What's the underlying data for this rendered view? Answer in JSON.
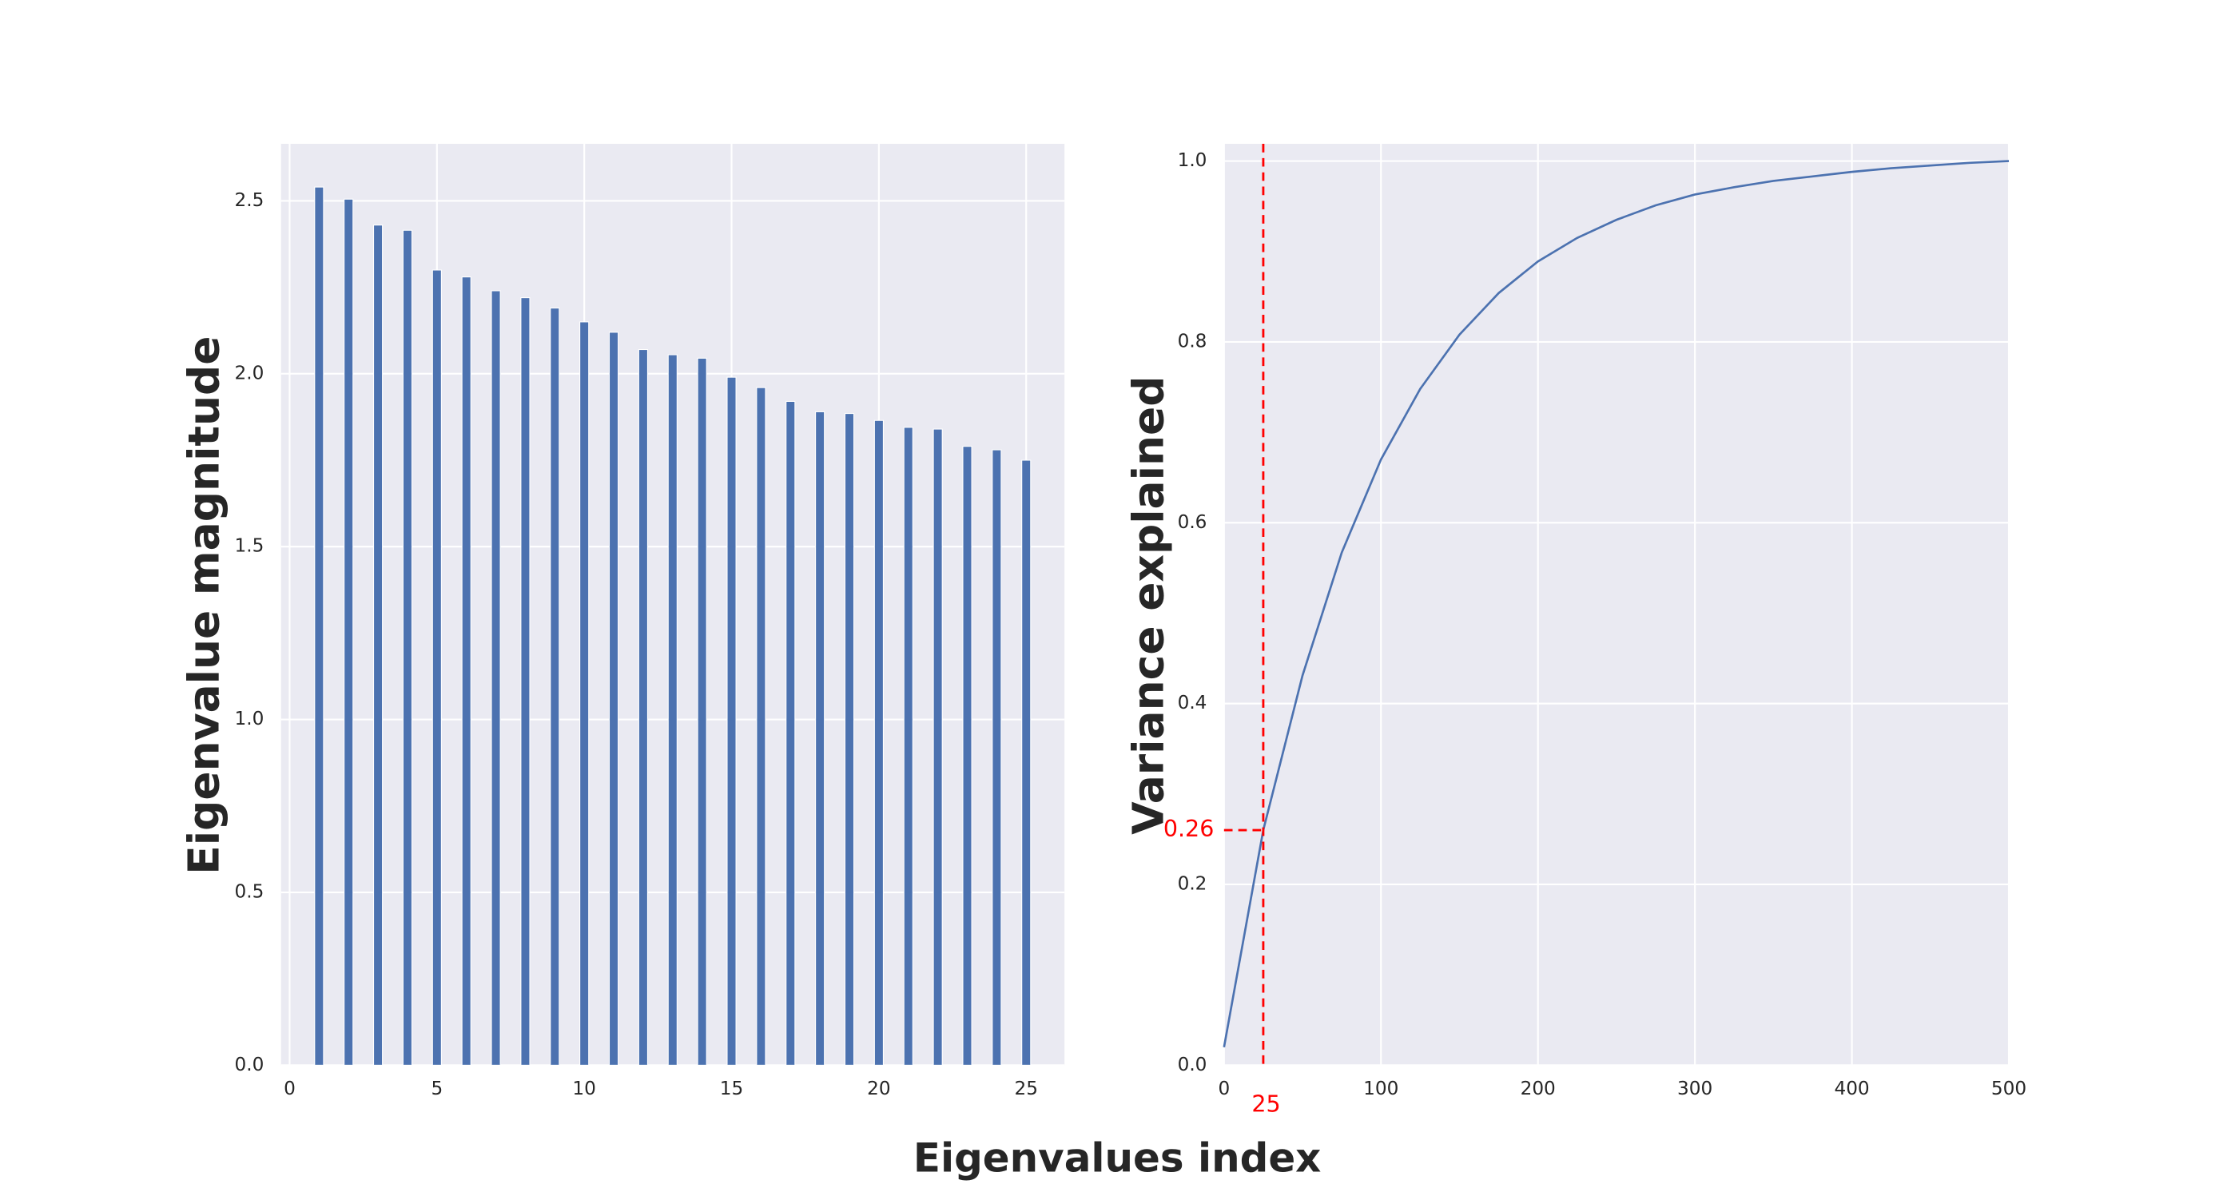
{
  "xlabel": "Eigenvalues index",
  "chart_data": [
    {
      "type": "bar",
      "ylabel": "Eigenvalue magnitude",
      "color": "#4c72b0",
      "x": [
        1,
        2,
        3,
        4,
        5,
        6,
        7,
        8,
        9,
        10,
        11,
        12,
        13,
        14,
        15,
        16,
        17,
        18,
        19,
        20,
        21,
        22,
        23,
        24,
        25
      ],
      "values": [
        2.54,
        2.505,
        2.43,
        2.415,
        2.3,
        2.28,
        2.24,
        2.22,
        2.19,
        2.15,
        2.12,
        2.07,
        2.055,
        2.045,
        1.99,
        1.96,
        1.92,
        1.89,
        1.885,
        1.865,
        1.845,
        1.84,
        1.79,
        1.78,
        1.75
      ],
      "xlim": [
        -0.29,
        26.3
      ],
      "xticks": [
        0,
        5,
        10,
        15,
        20,
        25
      ],
      "ylim": [
        0,
        2.665
      ],
      "yticks": [
        {
          "value": 0,
          "label": "0.0"
        },
        0.5,
        {
          "value": 1,
          "label": "1.0"
        },
        1.5,
        {
          "value": 2,
          "label": "2.0"
        },
        2.5
      ],
      "grid": true
    },
    {
      "type": "line",
      "ylabel": "Variance explained",
      "color": "#4c72b0",
      "x": [
        0,
        25,
        50,
        75,
        100,
        125,
        150,
        175,
        200,
        225,
        250,
        275,
        300,
        325,
        350,
        375,
        400,
        425,
        450,
        475,
        500
      ],
      "values": [
        0.02,
        0.26,
        0.431,
        0.567,
        0.67,
        0.748,
        0.808,
        0.854,
        0.889,
        0.915,
        0.935,
        0.951,
        0.963,
        0.971,
        0.978,
        0.983,
        0.988,
        0.992,
        0.995,
        0.998,
        1.0
      ],
      "xlim": [
        0,
        500
      ],
      "xticks": [
        0,
        100,
        200,
        300,
        400,
        500
      ],
      "ylim": [
        0,
        1.019
      ],
      "yticks": [
        {
          "value": 0,
          "label": "0.0"
        },
        0.2,
        0.4,
        0.6,
        0.8,
        {
          "value": 1,
          "label": "1.0"
        }
      ],
      "grid": true,
      "vline": {
        "x": 25,
        "label": "25",
        "color": "#ff0000"
      },
      "hline": {
        "y": 0.26,
        "label": "0.26",
        "color": "#ff0000"
      }
    }
  ]
}
